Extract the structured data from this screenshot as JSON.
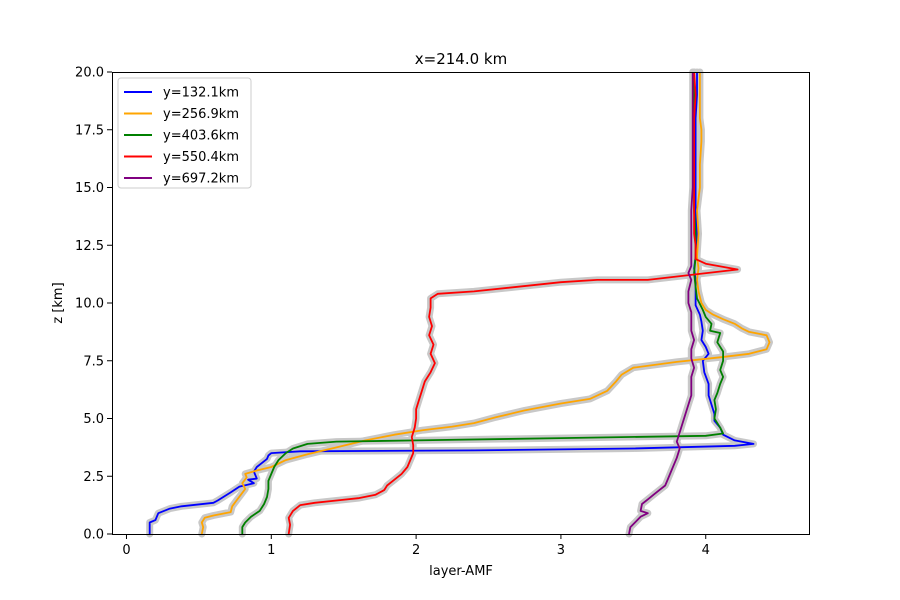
{
  "chart_data": {
    "type": "line",
    "title": "x=214.0 km",
    "xlabel": "layer-AMF",
    "ylabel": "z [km]",
    "xlim": [
      -0.1,
      4.72
    ],
    "ylim": [
      0,
      20
    ],
    "xticks": [
      0,
      1,
      2,
      3,
      4
    ],
    "yticks": [
      0.0,
      2.5,
      5.0,
      7.5,
      10.0,
      12.5,
      15.0,
      17.5,
      20.0
    ],
    "xtick_labels": [
      "0",
      "1",
      "2",
      "3",
      "4"
    ],
    "ytick_labels": [
      "0.0",
      "2.5",
      "5.0",
      "7.5",
      "10.0",
      "12.5",
      "15.0",
      "17.5",
      "20.0"
    ],
    "grid": false,
    "legend_position": "upper-left",
    "uncertainty_band_color": "#c8c8c8",
    "series": [
      {
        "name": "y=132.1km",
        "color": "#0000ff",
        "points": [
          [
            0.16,
            0
          ],
          [
            0.16,
            0.5
          ],
          [
            0.2,
            0.6
          ],
          [
            0.22,
            0.9
          ],
          [
            0.3,
            1.1
          ],
          [
            0.38,
            1.2
          ],
          [
            0.6,
            1.35
          ],
          [
            0.63,
            1.45
          ],
          [
            0.72,
            1.8
          ],
          [
            0.78,
            2.05
          ],
          [
            0.88,
            2.2
          ],
          [
            0.84,
            2.35
          ],
          [
            0.9,
            2.4
          ],
          [
            0.88,
            2.7
          ],
          [
            0.9,
            2.9
          ],
          [
            0.94,
            3.1
          ],
          [
            0.97,
            3.25
          ],
          [
            0.98,
            3.4
          ],
          [
            1.0,
            3.5
          ],
          [
            1.2,
            3.58
          ],
          [
            2.4,
            3.62
          ],
          [
            3.5,
            3.7
          ],
          [
            4.2,
            3.82
          ],
          [
            4.33,
            3.9
          ],
          [
            4.2,
            4.05
          ],
          [
            4.12,
            4.3
          ],
          [
            4.1,
            4.6
          ],
          [
            4.06,
            4.9
          ],
          [
            4.06,
            5.2
          ],
          [
            4.04,
            5.6
          ],
          [
            4.02,
            6.0
          ],
          [
            4.02,
            6.5
          ],
          [
            3.99,
            7.0
          ],
          [
            3.98,
            7.5
          ],
          [
            4.02,
            7.8
          ],
          [
            4.0,
            8.1
          ],
          [
            3.97,
            8.4
          ],
          [
            3.98,
            8.8
          ],
          [
            3.97,
            9.2
          ],
          [
            3.96,
            9.5
          ],
          [
            3.93,
            9.9
          ],
          [
            3.93,
            10.4
          ],
          [
            3.93,
            11.0
          ],
          [
            3.92,
            11.5
          ],
          [
            3.93,
            12.0
          ],
          [
            3.94,
            13.0
          ],
          [
            3.93,
            14.0
          ],
          [
            3.93,
            15.0
          ],
          [
            3.93,
            16.0
          ],
          [
            3.93,
            17.0
          ],
          [
            3.93,
            18.0
          ],
          [
            3.94,
            19.0
          ],
          [
            3.94,
            20.0
          ]
        ]
      },
      {
        "name": "y=256.9km",
        "color": "#ffa500",
        "points": [
          [
            0.52,
            0
          ],
          [
            0.53,
            0.3
          ],
          [
            0.52,
            0.5
          ],
          [
            0.54,
            0.7
          ],
          [
            0.6,
            0.8
          ],
          [
            0.72,
            0.95
          ],
          [
            0.73,
            1.2
          ],
          [
            0.76,
            1.45
          ],
          [
            0.79,
            1.7
          ],
          [
            0.82,
            1.95
          ],
          [
            0.8,
            2.2
          ],
          [
            0.83,
            2.45
          ],
          [
            0.82,
            2.6
          ],
          [
            0.9,
            2.75
          ],
          [
            1.0,
            2.9
          ],
          [
            1.1,
            3.2
          ],
          [
            1.25,
            3.45
          ],
          [
            1.45,
            3.75
          ],
          [
            1.65,
            4.05
          ],
          [
            1.85,
            4.3
          ],
          [
            2.05,
            4.5
          ],
          [
            2.25,
            4.65
          ],
          [
            2.4,
            4.8
          ],
          [
            2.55,
            5.05
          ],
          [
            2.75,
            5.35
          ],
          [
            3.0,
            5.65
          ],
          [
            3.2,
            5.85
          ],
          [
            3.32,
            6.2
          ],
          [
            3.38,
            6.6
          ],
          [
            3.42,
            6.9
          ],
          [
            3.5,
            7.2
          ],
          [
            3.8,
            7.45
          ],
          [
            4.1,
            7.65
          ],
          [
            4.3,
            7.8
          ],
          [
            4.42,
            8.0
          ],
          [
            4.44,
            8.3
          ],
          [
            4.42,
            8.6
          ],
          [
            4.3,
            8.75
          ],
          [
            4.25,
            8.9
          ],
          [
            4.2,
            9.1
          ],
          [
            4.12,
            9.3
          ],
          [
            4.05,
            9.5
          ],
          [
            4.0,
            9.7
          ],
          [
            3.97,
            10.0
          ],
          [
            3.95,
            10.5
          ],
          [
            3.94,
            11.0
          ],
          [
            3.95,
            11.5
          ],
          [
            3.94,
            12.0
          ],
          [
            3.95,
            13.0
          ],
          [
            3.94,
            14.0
          ],
          [
            3.96,
            15.0
          ],
          [
            3.96,
            16.0
          ],
          [
            3.97,
            17.0
          ],
          [
            3.97,
            17.5
          ],
          [
            3.96,
            18.0
          ],
          [
            3.96,
            19.0
          ],
          [
            3.96,
            20.0
          ]
        ]
      },
      {
        "name": "y=403.6km",
        "color": "#008000",
        "points": [
          [
            0.8,
            0
          ],
          [
            0.8,
            0.3
          ],
          [
            0.82,
            0.5
          ],
          [
            0.86,
            0.75
          ],
          [
            0.92,
            1.0
          ],
          [
            0.95,
            1.3
          ],
          [
            0.97,
            1.6
          ],
          [
            0.98,
            1.95
          ],
          [
            0.98,
            2.3
          ],
          [
            1.0,
            2.6
          ],
          [
            1.02,
            2.9
          ],
          [
            1.05,
            3.2
          ],
          [
            1.1,
            3.5
          ],
          [
            1.15,
            3.7
          ],
          [
            1.25,
            3.9
          ],
          [
            1.45,
            4.0
          ],
          [
            2.0,
            4.05
          ],
          [
            3.0,
            4.15
          ],
          [
            4.0,
            4.25
          ],
          [
            4.12,
            4.35
          ],
          [
            4.1,
            4.6
          ],
          [
            4.06,
            5.0
          ],
          [
            4.07,
            5.4
          ],
          [
            4.06,
            5.8
          ],
          [
            4.08,
            6.1
          ],
          [
            4.1,
            6.5
          ],
          [
            4.12,
            6.8
          ],
          [
            4.1,
            7.1
          ],
          [
            4.12,
            7.5
          ],
          [
            4.12,
            7.9
          ],
          [
            4.08,
            8.3
          ],
          [
            4.1,
            8.7
          ],
          [
            4.03,
            8.8
          ],
          [
            4.04,
            9.1
          ],
          [
            4.0,
            9.4
          ],
          [
            3.98,
            9.7
          ],
          [
            3.94,
            10.2
          ],
          [
            3.93,
            10.7
          ],
          [
            3.92,
            11.3
          ],
          [
            3.93,
            12.0
          ],
          [
            3.93,
            13.0
          ],
          [
            3.92,
            14.0
          ],
          [
            3.92,
            15.0
          ],
          [
            3.92,
            16.0
          ],
          [
            3.92,
            17.0
          ],
          [
            3.92,
            18.0
          ],
          [
            3.92,
            19.0
          ],
          [
            3.92,
            20.0
          ]
        ]
      },
      {
        "name": "y=550.4km",
        "color": "#ff0000",
        "points": [
          [
            1.12,
            0
          ],
          [
            1.13,
            0.4
          ],
          [
            1.12,
            0.7
          ],
          [
            1.15,
            1.0
          ],
          [
            1.2,
            1.25
          ],
          [
            1.3,
            1.35
          ],
          [
            1.45,
            1.45
          ],
          [
            1.6,
            1.55
          ],
          [
            1.72,
            1.7
          ],
          [
            1.78,
            1.9
          ],
          [
            1.8,
            2.1
          ],
          [
            1.85,
            2.35
          ],
          [
            1.9,
            2.6
          ],
          [
            1.94,
            2.9
          ],
          [
            1.96,
            3.2
          ],
          [
            1.98,
            3.5
          ],
          [
            1.98,
            3.85
          ],
          [
            1.97,
            4.2
          ],
          [
            1.99,
            4.6
          ],
          [
            2.0,
            5.0
          ],
          [
            2.0,
            5.4
          ],
          [
            2.02,
            5.8
          ],
          [
            2.04,
            6.2
          ],
          [
            2.06,
            6.6
          ],
          [
            2.1,
            7.0
          ],
          [
            2.13,
            7.4
          ],
          [
            2.1,
            7.8
          ],
          [
            2.12,
            8.2
          ],
          [
            2.09,
            8.6
          ],
          [
            2.11,
            9.0
          ],
          [
            2.09,
            9.4
          ],
          [
            2.1,
            9.8
          ],
          [
            2.1,
            10.2
          ],
          [
            2.15,
            10.4
          ],
          [
            2.4,
            10.5
          ],
          [
            3.0,
            10.9
          ],
          [
            3.25,
            11.0
          ],
          [
            3.6,
            11.0
          ],
          [
            4.22,
            11.45
          ],
          [
            4.0,
            11.7
          ],
          [
            3.93,
            11.9
          ],
          [
            3.93,
            12.5
          ],
          [
            3.92,
            13.0
          ],
          [
            3.92,
            14.0
          ],
          [
            3.92,
            15.0
          ],
          [
            3.92,
            16.0
          ],
          [
            3.92,
            17.0
          ],
          [
            3.92,
            18.0
          ],
          [
            3.93,
            19.0
          ],
          [
            3.92,
            20.0
          ]
        ]
      },
      {
        "name": "y=697.2km",
        "color": "#800080",
        "points": [
          [
            3.47,
            0
          ],
          [
            3.48,
            0.3
          ],
          [
            3.52,
            0.55
          ],
          [
            3.55,
            0.75
          ],
          [
            3.6,
            0.9
          ],
          [
            3.55,
            1.0
          ],
          [
            3.56,
            1.3
          ],
          [
            3.6,
            1.5
          ],
          [
            3.64,
            1.7
          ],
          [
            3.68,
            1.9
          ],
          [
            3.72,
            2.1
          ],
          [
            3.74,
            2.4
          ],
          [
            3.76,
            2.7
          ],
          [
            3.78,
            3.0
          ],
          [
            3.8,
            3.3
          ],
          [
            3.82,
            3.7
          ],
          [
            3.8,
            4.0
          ],
          [
            3.82,
            4.4
          ],
          [
            3.84,
            4.8
          ],
          [
            3.86,
            5.2
          ],
          [
            3.88,
            5.6
          ],
          [
            3.9,
            6.0
          ],
          [
            3.9,
            6.4
          ],
          [
            3.9,
            6.8
          ],
          [
            3.92,
            7.2
          ],
          [
            3.9,
            7.6
          ],
          [
            3.9,
            8.0
          ],
          [
            3.92,
            8.4
          ],
          [
            3.9,
            8.8
          ],
          [
            3.9,
            9.2
          ],
          [
            3.9,
            9.6
          ],
          [
            3.88,
            10.0
          ],
          [
            3.88,
            10.5
          ],
          [
            3.9,
            11.0
          ],
          [
            3.88,
            11.3
          ],
          [
            3.9,
            11.6
          ],
          [
            3.9,
            12.0
          ],
          [
            3.9,
            12.5
          ],
          [
            3.9,
            13.0
          ],
          [
            3.9,
            14.0
          ],
          [
            3.91,
            15.0
          ],
          [
            3.91,
            16.0
          ],
          [
            3.91,
            17.0
          ],
          [
            3.91,
            18.0
          ],
          [
            3.91,
            19.0
          ],
          [
            3.91,
            20.0
          ]
        ]
      }
    ]
  }
}
